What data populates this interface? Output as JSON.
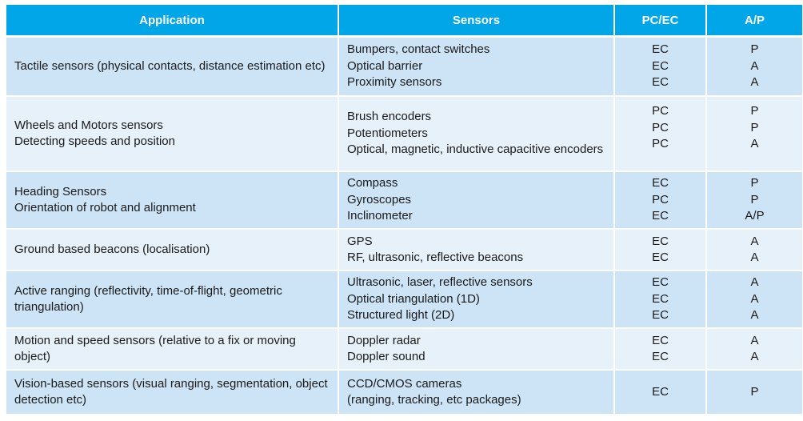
{
  "table": {
    "headers": [
      "Application",
      "Sensors",
      "PC/EC",
      "A/P"
    ],
    "rows": [
      {
        "application": [
          "Tactile sensors (physical contacts, distance estimation etc)"
        ],
        "sensors": [
          "Bumpers, contact switches",
          "Optical barrier",
          "Proximity sensors"
        ],
        "pcec": [
          "EC",
          "EC",
          "EC"
        ],
        "ap": [
          "P",
          "A",
          "A"
        ]
      },
      {
        "application": [
          "Wheels and Motors sensors",
          "Detecting speeds and position"
        ],
        "sensors": [
          "Brush encoders",
          "Potentiometers",
          "Optical, magnetic, inductive capacitive encoders"
        ],
        "pcec": [
          "PC",
          "PC",
          "PC"
        ],
        "ap": [
          "P",
          "P",
          "A"
        ]
      },
      {
        "application": [
          "Heading Sensors",
          "Orientation of robot and alignment"
        ],
        "sensors": [
          "Compass",
          "Gyroscopes",
          "Inclinometer"
        ],
        "pcec": [
          "EC",
          "PC",
          "EC"
        ],
        "ap": [
          "P",
          "P",
          "A/P"
        ]
      },
      {
        "application": [
          "Ground based beacons (localisation)"
        ],
        "sensors": [
          "GPS",
          "RF, ultrasonic, reflective beacons"
        ],
        "pcec": [
          "EC",
          "EC"
        ],
        "ap": [
          "A",
          "A"
        ]
      },
      {
        "application": [
          "Active ranging (reflectivity, time-of-flight, geometric triangulation)"
        ],
        "sensors": [
          "Ultrasonic, laser, reflective sensors",
          "Optical triangulation (1D)",
          "Structured light (2D)"
        ],
        "pcec": [
          "EC",
          "EC",
          "EC"
        ],
        "ap": [
          "A",
          "A",
          "A"
        ]
      },
      {
        "application": [
          "Motion and speed sensors (relative to a fix or moving object)"
        ],
        "sensors": [
          "Doppler radar",
          "Doppler sound"
        ],
        "pcec": [
          "EC",
          "EC"
        ],
        "ap": [
          "A",
          "A"
        ]
      },
      {
        "application": [
          "Vision-based sensors (visual ranging, segmentation, object detection etc)"
        ],
        "sensors": [
          "CCD/CMOS cameras",
          "(ranging, tracking, etc packages)"
        ],
        "pcec": [
          "EC"
        ],
        "ap": [
          "P"
        ]
      }
    ]
  }
}
